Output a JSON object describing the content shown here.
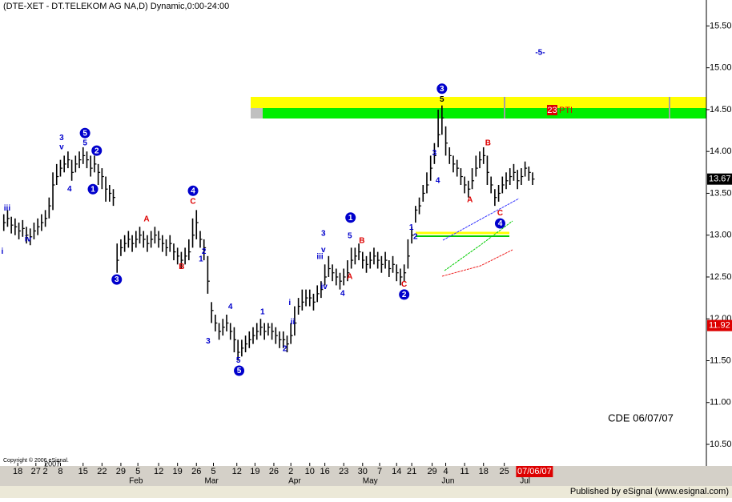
{
  "chart_data": {
    "type": "ohlc",
    "title": "(DTE-XET - DT.TELEKOM AG NA,D) Dynamic,0:00-24:00",
    "bar_color": "#000000",
    "xlim": [
      0,
      187
    ],
    "ylim": [
      10.28,
      15.81
    ],
    "yticks": [
      {
        "value": 15.5,
        "label": "15.50"
      },
      {
        "value": 15,
        "label": "15.00"
      },
      {
        "value": 14.5,
        "label": "14.50"
      },
      {
        "value": 14,
        "label": "14.00"
      },
      {
        "value": 13.5,
        "label": "13.50"
      },
      {
        "value": 13,
        "label": "13.00"
      },
      {
        "value": 12.5,
        "label": "12.50"
      },
      {
        "value": 12,
        "label": "12.00"
      },
      {
        "value": 11.5,
        "label": "11.50"
      },
      {
        "value": 11,
        "label": "11.00"
      },
      {
        "value": 10.5,
        "label": "10.50"
      }
    ],
    "xticks": [
      {
        "value": 4.7,
        "label": "18"
      },
      {
        "value": 9.5,
        "label": "27"
      },
      {
        "value": 12,
        "label": "2"
      },
      {
        "value": 16,
        "label": "8"
      },
      {
        "value": 22,
        "label": "15"
      },
      {
        "value": 27,
        "label": "22"
      },
      {
        "value": 32,
        "label": "29"
      },
      {
        "value": 36.5,
        "label": "5"
      },
      {
        "value": 42,
        "label": "12"
      },
      {
        "value": 47,
        "label": "19"
      },
      {
        "value": 52,
        "label": "26"
      },
      {
        "value": 56.5,
        "label": "5"
      },
      {
        "value": 62.7,
        "label": "12"
      },
      {
        "value": 67.5,
        "label": "19"
      },
      {
        "value": 72.5,
        "label": "26"
      },
      {
        "value": 77,
        "label": "2"
      },
      {
        "value": 82,
        "label": "10"
      },
      {
        "value": 86,
        "label": "16"
      },
      {
        "value": 91,
        "label": "23"
      },
      {
        "value": 96,
        "label": "30"
      },
      {
        "value": 100.5,
        "label": "7"
      },
      {
        "value": 105,
        "label": "14"
      },
      {
        "value": 109,
        "label": "21"
      },
      {
        "value": 114.4,
        "label": "29"
      },
      {
        "value": 118,
        "label": "4"
      },
      {
        "value": 123,
        "label": "11"
      },
      {
        "value": 128,
        "label": "18"
      },
      {
        "value": 133.5,
        "label": "25"
      }
    ],
    "months": [
      {
        "value": 13.8,
        "label": "2007"
      },
      {
        "value": 36,
        "label": "Feb"
      },
      {
        "value": 56,
        "label": "Mar"
      },
      {
        "value": 78,
        "label": "Apr"
      },
      {
        "value": 98,
        "label": "May"
      },
      {
        "value": 118.6,
        "label": "Jun"
      },
      {
        "value": 139,
        "label": "Jul"
      }
    ],
    "last_date": {
      "value": 141.5,
      "label": "07/06/07"
    },
    "last_price": 13.67,
    "marker_price": 11.92,
    "high": [
      13.25,
      13.3,
      13.22,
      13.2,
      13.15,
      13.18,
      13.1,
      13.08,
      13.15,
      13.2,
      13.25,
      13.3,
      13.45,
      13.75,
      13.85,
      13.9,
      13.95,
      14.0,
      13.9,
      13.95,
      14.0,
      14.05,
      14.0,
      13.95,
      13.95,
      13.85,
      13.8,
      13.7,
      13.6,
      13.55,
      12.9,
      12.95,
      13.0,
      13.05,
      13.0,
      13.05,
      13.1,
      13.05,
      13.0,
      13.05,
      13.1,
      13.05,
      13.0,
      12.95,
      13.0,
      12.9,
      12.85,
      12.8,
      12.85,
      12.95,
      13.2,
      13.3,
      13.05,
      12.95,
      12.75,
      12.2,
      12.05,
      11.95,
      12.0,
      12.05,
      11.95,
      11.9,
      11.75,
      11.75,
      11.8,
      11.85,
      11.9,
      11.95,
      12.0,
      11.95,
      11.95,
      11.95,
      11.9,
      11.85,
      11.85,
      11.8,
      11.95,
      12.15,
      12.25,
      12.35,
      12.35,
      12.35,
      12.3,
      12.4,
      12.45,
      12.65,
      12.75,
      12.65,
      12.6,
      12.55,
      12.6,
      12.7,
      12.85,
      12.85,
      12.9,
      12.8,
      12.75,
      12.8,
      12.85,
      12.8,
      12.75,
      12.8,
      12.7,
      12.75,
      12.65,
      12.6,
      12.65,
      12.95,
      13.1,
      13.35,
      13.45,
      13.6,
      13.75,
      13.95,
      14.1,
      14.5,
      14.55,
      14.3,
      14.05,
      13.95,
      13.9,
      13.8,
      13.7,
      13.65,
      13.8,
      13.95,
      14.0,
      14.05,
      13.95,
      13.7,
      13.55,
      13.6,
      13.7,
      13.75,
      13.8,
      13.85,
      13.78,
      13.8,
      13.88,
      13.82,
      13.75
    ],
    "low": [
      13.05,
      13.1,
      13.02,
      13.0,
      12.95,
      12.98,
      12.9,
      12.88,
      12.95,
      13.0,
      13.05,
      13.1,
      13.2,
      13.3,
      13.6,
      13.7,
      13.75,
      13.8,
      13.65,
      13.75,
      13.8,
      13.85,
      13.8,
      13.7,
      13.75,
      13.6,
      13.55,
      13.4,
      13.4,
      13.35,
      12.55,
      12.75,
      12.8,
      12.85,
      12.8,
      12.85,
      12.9,
      12.85,
      12.8,
      12.85,
      12.9,
      12.85,
      12.8,
      12.75,
      12.8,
      12.7,
      12.65,
      12.6,
      12.65,
      12.7,
      12.85,
      12.95,
      12.85,
      12.7,
      12.3,
      11.95,
      11.85,
      11.75,
      11.8,
      11.85,
      11.75,
      11.6,
      11.5,
      11.55,
      11.6,
      11.65,
      11.7,
      11.75,
      11.8,
      11.75,
      11.8,
      11.75,
      11.7,
      11.65,
      11.65,
      11.6,
      11.7,
      11.8,
      12.05,
      12.1,
      12.15,
      12.15,
      12.1,
      12.2,
      12.25,
      12.4,
      12.5,
      12.45,
      12.4,
      12.35,
      12.4,
      12.45,
      12.6,
      12.65,
      12.7,
      12.6,
      12.55,
      12.6,
      12.65,
      12.6,
      12.55,
      12.6,
      12.5,
      12.55,
      12.45,
      12.4,
      12.45,
      12.6,
      12.9,
      13.15,
      13.25,
      13.4,
      13.5,
      13.65,
      13.85,
      14.05,
      14.2,
      13.95,
      13.85,
      13.75,
      13.7,
      13.6,
      13.5,
      13.45,
      13.55,
      13.7,
      13.8,
      13.85,
      13.6,
      13.5,
      13.35,
      13.4,
      13.5,
      13.55,
      13.6,
      13.65,
      13.55,
      13.6,
      13.7,
      13.65,
      13.6
    ],
    "close": [
      13.15,
      13.2,
      13.12,
      13.1,
      13.05,
      13.08,
      13.0,
      12.98,
      13.05,
      13.1,
      13.15,
      13.2,
      13.35,
      13.6,
      13.7,
      13.8,
      13.85,
      13.9,
      13.75,
      13.85,
      13.9,
      13.95,
      13.9,
      13.8,
      13.85,
      13.75,
      13.7,
      13.55,
      13.5,
      13.45,
      12.7,
      12.85,
      12.9,
      12.95,
      12.9,
      12.95,
      13.0,
      12.95,
      12.9,
      12.95,
      13.0,
      12.95,
      12.9,
      12.85,
      12.9,
      12.8,
      12.75,
      12.7,
      12.75,
      12.8,
      13.0,
      13.15,
      12.95,
      12.85,
      12.45,
      12.1,
      11.95,
      11.85,
      11.9,
      11.95,
      11.85,
      11.75,
      11.6,
      11.65,
      11.7,
      11.75,
      11.8,
      11.85,
      11.9,
      11.85,
      11.9,
      11.85,
      11.8,
      11.75,
      11.75,
      11.7,
      11.8,
      11.95,
      12.15,
      12.2,
      12.25,
      12.25,
      12.2,
      12.3,
      12.35,
      12.5,
      12.6,
      12.55,
      12.5,
      12.45,
      12.5,
      12.55,
      12.7,
      12.75,
      12.8,
      12.7,
      12.65,
      12.7,
      12.75,
      12.7,
      12.65,
      12.7,
      12.6,
      12.65,
      12.55,
      12.5,
      12.55,
      12.75,
      13.0,
      13.3,
      13.35,
      13.5,
      13.6,
      13.8,
      13.95,
      14.2,
      14.4,
      14.1,
      13.95,
      13.85,
      13.8,
      13.7,
      13.6,
      13.55,
      13.65,
      13.8,
      13.9,
      13.95,
      13.75,
      13.6,
      13.45,
      13.5,
      13.6,
      13.65,
      13.7,
      13.75,
      13.65,
      13.7,
      13.8,
      13.75,
      13.67
    ],
    "annotations": [
      {
        "text": "iii",
        "x": 1.9,
        "y": 13.32,
        "color": "#0000cc",
        "circled": false
      },
      {
        "text": "i",
        "x": 0.6,
        "y": 12.8,
        "color": "#0000cc",
        "circled": false
      },
      {
        "text": "iv",
        "x": 7.4,
        "y": 12.95,
        "color": "#0000cc",
        "circled": false
      },
      {
        "text": "3",
        "x": 16.3,
        "y": 14.16,
        "color": "#0000cc",
        "circled": false
      },
      {
        "text": "v",
        "x": 16.3,
        "y": 14.05,
        "color": "#0000cc",
        "circled": false
      },
      {
        "text": "5",
        "x": 22.5,
        "y": 14.22,
        "color": "#0000cc",
        "circled": true
      },
      {
        "text": "5",
        "x": 22.5,
        "y": 14.1,
        "color": "#0000cc",
        "circled": false
      },
      {
        "text": "2",
        "x": 25.6,
        "y": 14.01,
        "color": "#0000cc",
        "circled": true
      },
      {
        "text": "4",
        "x": 18.4,
        "y": 13.55,
        "color": "#0000cc",
        "circled": false
      },
      {
        "text": "1",
        "x": 24.6,
        "y": 13.55,
        "color": "#0000cc",
        "circled": true
      },
      {
        "text": "3",
        "x": 30.9,
        "y": 12.47,
        "color": "#0000cc",
        "circled": true
      },
      {
        "text": "A",
        "x": 38.8,
        "y": 13.19,
        "color": "#dd0000",
        "circled": false
      },
      {
        "text": "B",
        "x": 48.1,
        "y": 12.62,
        "color": "#dd0000",
        "circled": false
      },
      {
        "text": "4",
        "x": 51.1,
        "y": 13.53,
        "color": "#0000cc",
        "circled": true
      },
      {
        "text": "C",
        "x": 51.1,
        "y": 13.4,
        "color": "#dd0000",
        "circled": false
      },
      {
        "text": "2",
        "x": 54,
        "y": 12.8,
        "color": "#0000cc",
        "circled": false
      },
      {
        "text": "1",
        "x": 53.2,
        "y": 12.71,
        "color": "#0000cc",
        "circled": false
      },
      {
        "text": "3",
        "x": 55.1,
        "y": 11.73,
        "color": "#0000cc",
        "circled": false
      },
      {
        "text": "4",
        "x": 61,
        "y": 12.14,
        "color": "#0000cc",
        "circled": false
      },
      {
        "text": "5",
        "x": 63.1,
        "y": 11.5,
        "color": "#0000cc",
        "circled": false
      },
      {
        "text": "5",
        "x": 63.3,
        "y": 11.38,
        "color": "#0000cc",
        "circled": true
      },
      {
        "text": "1",
        "x": 69.5,
        "y": 12.08,
        "color": "#0000cc",
        "circled": false
      },
      {
        "text": "2",
        "x": 75.4,
        "y": 11.64,
        "color": "#0000cc",
        "circled": false
      },
      {
        "text": "i",
        "x": 76.7,
        "y": 12.19,
        "color": "#0000cc",
        "circled": false
      },
      {
        "text": "ii",
        "x": 77.5,
        "y": 11.96,
        "color": "#0000cc",
        "circled": false
      },
      {
        "text": "3",
        "x": 85.6,
        "y": 13.02,
        "color": "#0000cc",
        "circled": false
      },
      {
        "text": "v",
        "x": 85.6,
        "y": 12.82,
        "color": "#0000cc",
        "circled": false
      },
      {
        "text": "iii",
        "x": 84.7,
        "y": 12.74,
        "color": "#0000cc",
        "circled": false
      },
      {
        "text": "iv",
        "x": 85.8,
        "y": 12.38,
        "color": "#0000cc",
        "circled": false
      },
      {
        "text": "1",
        "x": 92.8,
        "y": 13.21,
        "color": "#0000cc",
        "circled": true
      },
      {
        "text": "5",
        "x": 92.6,
        "y": 12.99,
        "color": "#0000cc",
        "circled": false
      },
      {
        "text": "B",
        "x": 95.8,
        "y": 12.93,
        "color": "#dd0000",
        "circled": false
      },
      {
        "text": "A",
        "x": 92.6,
        "y": 12.5,
        "color": "#dd0000",
        "circled": false
      },
      {
        "text": "4",
        "x": 90.7,
        "y": 12.3,
        "color": "#0000cc",
        "circled": false
      },
      {
        "text": "C",
        "x": 107,
        "y": 12.41,
        "color": "#dd0000",
        "circled": false
      },
      {
        "text": "2",
        "x": 107,
        "y": 12.29,
        "color": "#0000cc",
        "circled": true
      },
      {
        "text": "1",
        "x": 108.9,
        "y": 13.09,
        "color": "#0000cc",
        "circled": false
      },
      {
        "text": "2",
        "x": 110,
        "y": 12.98,
        "color": "#0000cc",
        "circled": false
      },
      {
        "text": "3",
        "x": 115,
        "y": 13.98,
        "color": "#0000cc",
        "circled": false
      },
      {
        "text": "4",
        "x": 115.9,
        "y": 13.65,
        "color": "#0000cc",
        "circled": false
      },
      {
        "text": "3",
        "x": 117,
        "y": 14.75,
        "color": "#0000cc",
        "circled": true
      },
      {
        "text": "5",
        "x": 117,
        "y": 14.62,
        "color": "#000000",
        "circled": false
      },
      {
        "text": "B",
        "x": 129.2,
        "y": 14.1,
        "color": "#dd0000",
        "circled": false
      },
      {
        "text": "A",
        "x": 124.4,
        "y": 13.42,
        "color": "#dd0000",
        "circled": false
      },
      {
        "text": "C",
        "x": 132.4,
        "y": 13.26,
        "color": "#dd0000",
        "circled": false
      },
      {
        "text": "4",
        "x": 132.4,
        "y": 13.14,
        "color": "#0000cc",
        "circled": true
      },
      {
        "text": "-5-",
        "x": 143,
        "y": 15.18,
        "color": "#0000cc",
        "circled": false
      }
    ],
    "zone_count": "23",
    "zone_label": "PTI",
    "stamp": "CDE 06/07/07",
    "copyright": "Copyright © 2006 eSignal.",
    "footer": "Published by eSignal (www.esignal.com)"
  }
}
